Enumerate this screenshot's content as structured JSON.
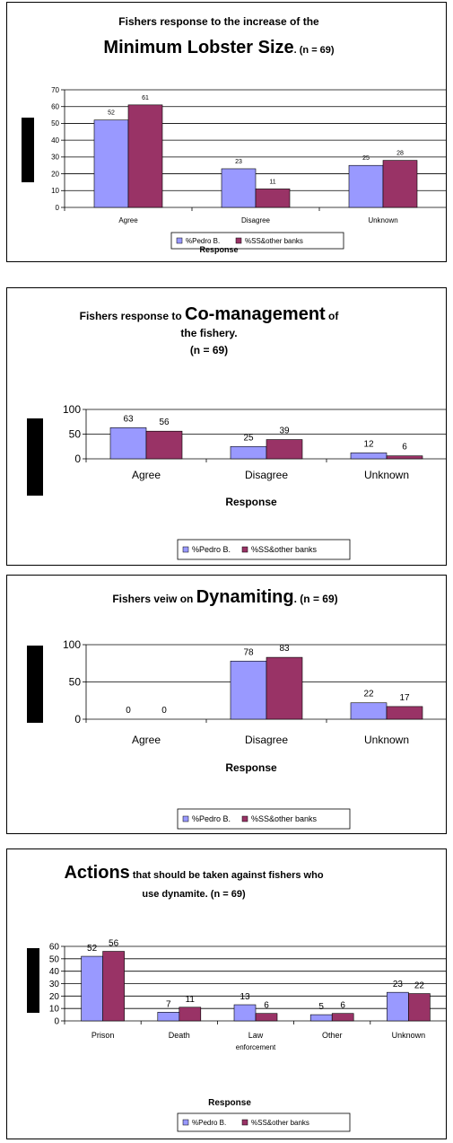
{
  "colors": {
    "pedro": "#9999FF",
    "ss": "#993366",
    "background": "#FFFFFF",
    "grid": "#000000"
  },
  "chart_data": [
    {
      "type": "bar",
      "title_line1": "Fishers response to the increase of the",
      "title_line2_big": "Minimum Lobster Size",
      "title_line2_small": ". (n = 69)",
      "xlabel": "Response",
      "ylabel": "",
      "ylim": [
        0,
        70
      ],
      "yticks": [
        "0",
        "10",
        "20",
        "30",
        "40",
        "50",
        "60",
        "70"
      ],
      "categories": [
        "Agree",
        "Disagree",
        "Unknown"
      ],
      "series": [
        {
          "name": "%Pedro B.",
          "values": [
            52,
            23,
            25
          ],
          "labels": [
            "52",
            "23",
            "25"
          ]
        },
        {
          "name": "%SS&other banks",
          "values": [
            61,
            11,
            28
          ],
          "labels": [
            "61",
            "11",
            "28"
          ]
        }
      ],
      "grid": true,
      "legend": "bottom"
    },
    {
      "type": "bar",
      "title_line1_small_a": "Fishers response to ",
      "title_line1_big": "Co-management",
      "title_line1_small_b": " of",
      "title_line2": "the fishery.",
      "title_line3": "(n = 69)",
      "xlabel": "Response",
      "ylabel": "",
      "ylim": [
        0,
        100
      ],
      "yticks": [
        "0",
        "50",
        "100"
      ],
      "categories": [
        "Agree",
        "Disagree",
        "Unknown"
      ],
      "series": [
        {
          "name": "%Pedro B.",
          "values": [
            63,
            25,
            12
          ],
          "labels": [
            "63",
            "25",
            "12"
          ]
        },
        {
          "name": "%SS&other banks",
          "values": [
            56,
            39,
            6
          ],
          "labels": [
            "56",
            "39",
            "6"
          ]
        }
      ],
      "grid": true,
      "legend": "bottom"
    },
    {
      "type": "bar",
      "title_small_a": "Fishers veiw on ",
      "title_big": "Dynamiting",
      "title_small_b": ". (n = 69)",
      "xlabel": "Response",
      "ylabel": "",
      "ylim": [
        0,
        100
      ],
      "yticks": [
        "0",
        "50",
        "100"
      ],
      "categories": [
        "Agree",
        "Disagree",
        "Unknown"
      ],
      "series": [
        {
          "name": "%Pedro B.",
          "values": [
            0,
            78,
            22
          ],
          "labels": [
            "0",
            "78",
            "22"
          ]
        },
        {
          "name": "%SS&other banks",
          "values": [
            0,
            83,
            17
          ],
          "labels": [
            "0",
            "83",
            "17"
          ]
        }
      ],
      "grid": true,
      "legend": "bottom"
    },
    {
      "type": "bar",
      "title_line1_big": "Actions",
      "title_line1_small": " that should be taken against fishers who",
      "title_line2": "use dynamite. (n = 69)",
      "xlabel": "Response",
      "ylabel": "",
      "ylim": [
        0,
        60
      ],
      "yticks": [
        "0",
        "10",
        "20",
        "30",
        "40",
        "50",
        "60"
      ],
      "categories": [
        "Prison",
        "Death",
        "Law enforcement",
        "Other",
        "Unknown"
      ],
      "category_lines": [
        [
          "Prison"
        ],
        [
          "Death"
        ],
        [
          "Law",
          "enforcement"
        ],
        [
          "Other"
        ],
        [
          "Unknown"
        ]
      ],
      "series": [
        {
          "name": "%Pedro B.",
          "values": [
            52,
            7,
            13,
            5,
            23
          ],
          "labels": [
            "52",
            "7",
            "13",
            "5",
            "23"
          ]
        },
        {
          "name": "%SS&other banks",
          "values": [
            56,
            11,
            6,
            6,
            22
          ],
          "labels": [
            "56",
            "11",
            "6",
            "6",
            "22"
          ]
        }
      ],
      "grid": true,
      "legend": "bottom"
    }
  ]
}
